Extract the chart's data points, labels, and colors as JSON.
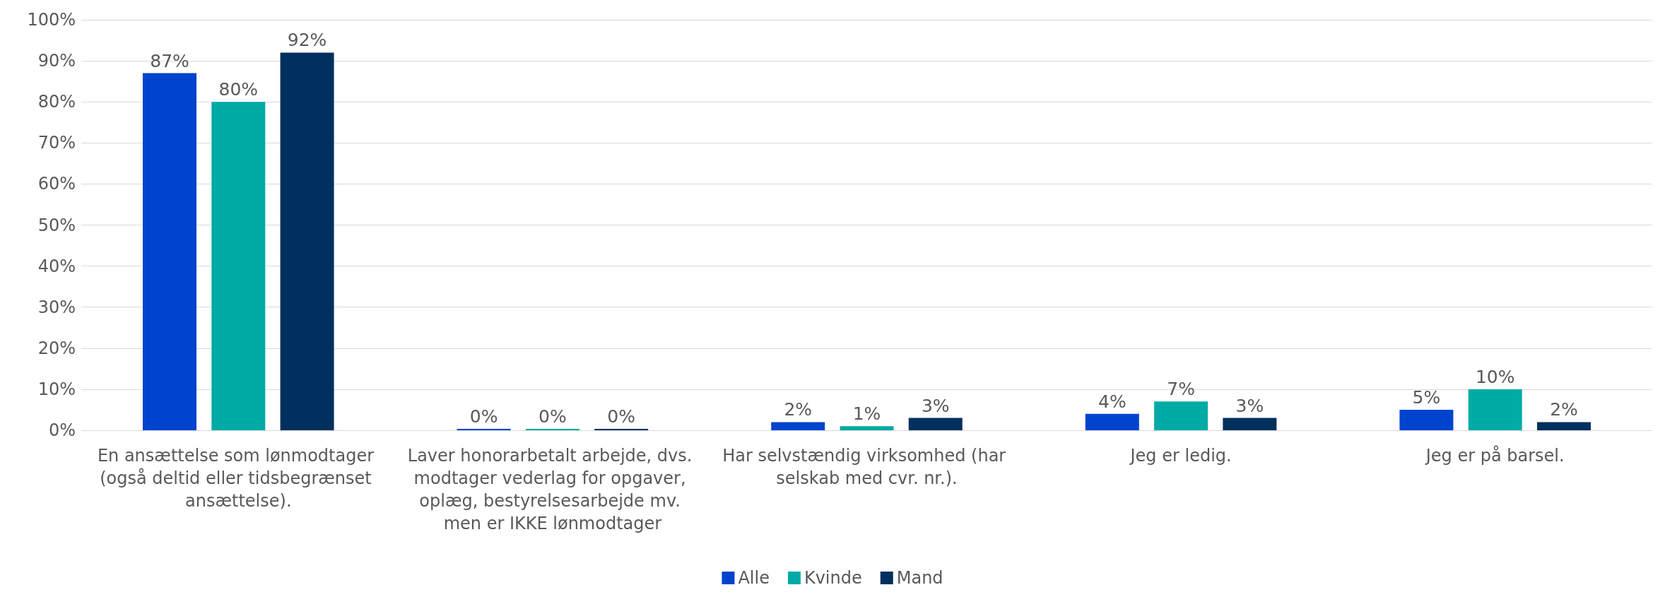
{
  "chart_data": {
    "type": "bar",
    "categories": [
      "En ansættelse som lønmodtager (også deltid eller tidsbegrænset ansættelse).",
      "Laver honorarbetalt arbejde, dvs. modtager vederlag for opgaver, oplæg, bestyrelsesarbejde mv. men er IKKE lønmodtager",
      "Har selvstændig virksomhed (har selskab med cvr. nr.).",
      "Jeg er ledig.",
      "Jeg er på barsel."
    ],
    "series": [
      {
        "name": "Alle",
        "color": "#0043ce",
        "values": [
          87,
          0,
          2,
          4,
          5
        ],
        "value_labels": [
          "87%",
          "0%",
          "2%",
          "4%",
          "5%"
        ]
      },
      {
        "name": "Kvinde",
        "color": "#00aba5",
        "values": [
          80,
          0,
          1,
          7,
          10
        ],
        "value_labels": [
          "80%",
          "0%",
          "1%",
          "7%",
          "10%"
        ]
      },
      {
        "name": "Mand",
        "color": "#00305e",
        "values": [
          92,
          0,
          3,
          3,
          2
        ],
        "value_labels": [
          "92%",
          "0%",
          "3%",
          "3%",
          "2%"
        ]
      }
    ],
    "ylim": [
      0,
      100
    ],
    "yticks": [
      {
        "value": 0,
        "label": "0%"
      },
      {
        "value": 10,
        "label": "10%"
      },
      {
        "value": 20,
        "label": "20%"
      },
      {
        "value": 30,
        "label": "30%"
      },
      {
        "value": 40,
        "label": "40%"
      },
      {
        "value": 50,
        "label": "50%"
      },
      {
        "value": 60,
        "label": "60%"
      },
      {
        "value": 70,
        "label": "70%"
      },
      {
        "value": 80,
        "label": "80%"
      },
      {
        "value": 90,
        "label": "90%"
      },
      {
        "value": 100,
        "label": "100%"
      }
    ],
    "grid": "y",
    "legend": "bottom"
  }
}
